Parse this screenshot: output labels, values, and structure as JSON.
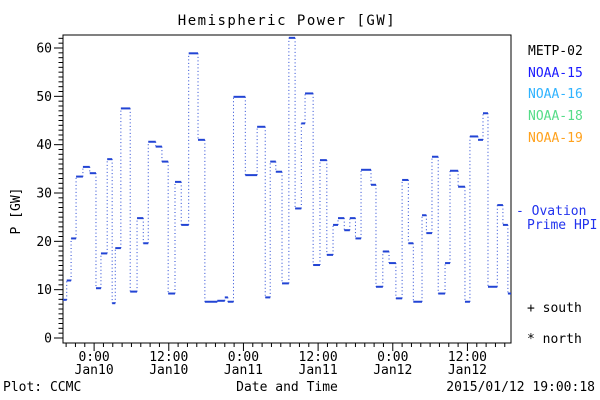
{
  "title": "Hemispheric Power [GW]",
  "y_axis": {
    "label": "P [GW]",
    "ticks": [
      0,
      10,
      20,
      30,
      40,
      50,
      60
    ],
    "minor_step": 1
  },
  "x_axis": {
    "label": "Date and Time",
    "ticks": [
      {
        "time": "0:00",
        "date": "Jan10"
      },
      {
        "time": "12:00",
        "date": "Jan10"
      },
      {
        "time": "0:00",
        "date": "Jan11"
      },
      {
        "time": "12:00",
        "date": "Jan11"
      },
      {
        "time": "0:00",
        "date": "Jan12"
      },
      {
        "time": "12:00",
        "date": "Jan12"
      }
    ]
  },
  "footer": {
    "left": "Plot: CCMC",
    "right": "2015/01/12 19:00:18"
  },
  "legend": {
    "satellites": [
      {
        "name": "METP-02",
        "color": "#000000"
      },
      {
        "name": "NOAA-15",
        "color": "#1a1aff"
      },
      {
        "name": "NOAA-16",
        "color": "#2fb3ff"
      },
      {
        "name": "NOAA-18",
        "color": "#55dd88"
      },
      {
        "name": "NOAA-19",
        "color": "#ffa21e"
      }
    ],
    "ovation_lines": [
      "- Ovation",
      "Prime HPI"
    ],
    "ovation_color": "#2233ee",
    "markers_text": [
      "+ south",
      "* north"
    ]
  },
  "chart_data": {
    "type": "line",
    "style": "step-segments-with-dotted-connectors",
    "series_name": "Ovation Prime HPI",
    "color": "#2244d4",
    "title": "Hemispheric Power [GW]",
    "xlabel": "Date and Time",
    "ylabel": "P [GW]",
    "ylim": [
      0,
      62
    ],
    "xlim_hours_since_jan9_0000": [
      19,
      91
    ],
    "x_tick_hours": [
      24,
      36,
      48,
      60,
      72,
      84
    ],
    "x_minor_step_hours": 1.5,
    "segments_t0_t1_gw": [
      [
        19.0,
        19.6,
        7.9
      ],
      [
        19.6,
        20.3,
        11.9
      ],
      [
        20.3,
        21.1,
        20.6
      ],
      [
        21.1,
        22.2,
        33.4
      ],
      [
        22.2,
        23.3,
        35.4
      ],
      [
        23.3,
        24.3,
        34.1
      ],
      [
        24.3,
        25.1,
        10.3
      ],
      [
        25.1,
        26.1,
        17.5
      ],
      [
        26.1,
        26.9,
        37.0
      ],
      [
        26.9,
        27.4,
        7.2
      ],
      [
        27.4,
        28.3,
        18.6
      ],
      [
        28.3,
        29.8,
        47.5
      ],
      [
        29.8,
        30.9,
        9.6
      ],
      [
        30.9,
        31.9,
        24.8
      ],
      [
        31.9,
        32.7,
        19.6
      ],
      [
        32.7,
        33.9,
        40.6
      ],
      [
        33.9,
        34.9,
        39.6
      ],
      [
        34.9,
        35.9,
        36.5
      ],
      [
        35.9,
        37.0,
        9.2
      ],
      [
        37.0,
        38.0,
        32.3
      ],
      [
        38.0,
        39.2,
        23.4
      ],
      [
        39.2,
        40.7,
        58.9
      ],
      [
        40.7,
        41.8,
        41.0
      ],
      [
        41.8,
        43.8,
        7.5
      ],
      [
        43.8,
        45.0,
        7.7
      ],
      [
        45.0,
        45.5,
        8.4
      ],
      [
        45.5,
        46.4,
        7.5
      ],
      [
        46.4,
        48.3,
        49.9
      ],
      [
        48.3,
        50.2,
        33.7
      ],
      [
        50.2,
        51.5,
        43.7
      ],
      [
        51.5,
        52.3,
        8.4
      ],
      [
        52.3,
        53.2,
        36.5
      ],
      [
        53.2,
        54.2,
        34.4
      ],
      [
        54.2,
        55.3,
        11.3
      ],
      [
        55.3,
        56.3,
        62.1
      ],
      [
        56.3,
        57.3,
        26.8
      ],
      [
        57.3,
        57.9,
        44.4
      ],
      [
        57.9,
        59.2,
        50.6
      ],
      [
        59.2,
        60.3,
        15.1
      ],
      [
        60.3,
        61.4,
        36.8
      ],
      [
        61.4,
        62.4,
        17.2
      ],
      [
        62.4,
        63.2,
        23.4
      ],
      [
        63.2,
        64.2,
        24.8
      ],
      [
        64.2,
        65.1,
        22.3
      ],
      [
        65.1,
        66.0,
        24.8
      ],
      [
        66.0,
        66.9,
        20.6
      ],
      [
        66.9,
        68.5,
        34.8
      ],
      [
        68.5,
        69.3,
        31.7
      ],
      [
        69.3,
        70.4,
        10.6
      ],
      [
        70.4,
        71.4,
        17.9
      ],
      [
        71.4,
        72.5,
        15.5
      ],
      [
        72.5,
        73.5,
        8.2
      ],
      [
        73.5,
        74.5,
        32.7
      ],
      [
        74.5,
        75.3,
        19.6
      ],
      [
        75.3,
        76.7,
        7.5
      ],
      [
        76.7,
        77.4,
        25.4
      ],
      [
        77.4,
        78.3,
        21.7
      ],
      [
        78.3,
        79.3,
        37.5
      ],
      [
        79.3,
        80.4,
        9.2
      ],
      [
        80.4,
        81.2,
        15.5
      ],
      [
        81.2,
        82.5,
        34.6
      ],
      [
        82.5,
        83.6,
        31.3
      ],
      [
        83.6,
        84.4,
        7.5
      ],
      [
        84.4,
        85.7,
        41.7
      ],
      [
        85.7,
        86.5,
        41.0
      ],
      [
        86.5,
        87.3,
        46.5
      ],
      [
        87.3,
        88.8,
        10.6
      ],
      [
        88.8,
        89.7,
        27.5
      ],
      [
        89.7,
        90.5,
        23.4
      ],
      [
        90.5,
        91.0,
        9.2
      ]
    ]
  }
}
